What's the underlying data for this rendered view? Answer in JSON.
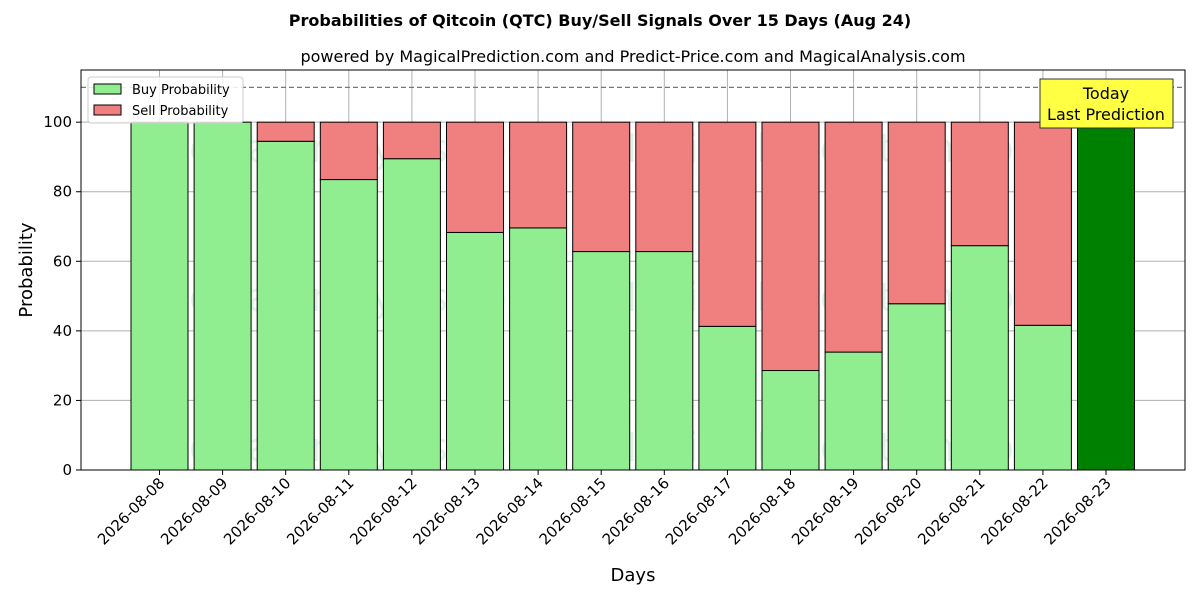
{
  "chart_data": {
    "type": "bar",
    "title": "Probabilities of Qitcoin (QTC) Buy/Sell Signals Over 15 Days (Aug 24)",
    "subtitle": "powered by MagicalPrediction.com and Predict-Price.com and MagicalAnalysis.com",
    "xlabel": "Days",
    "ylabel": "Probability",
    "ylim": [
      0,
      115
    ],
    "yticks": [
      0,
      20,
      40,
      60,
      80,
      100
    ],
    "grid": true,
    "stacked": true,
    "legend_position": "top-left",
    "reference_line": 110,
    "categories": [
      "2026-08-08",
      "2026-08-09",
      "2026-08-10",
      "2026-08-11",
      "2026-08-12",
      "2026-08-13",
      "2026-08-14",
      "2026-08-15",
      "2026-08-16",
      "2026-08-17",
      "2026-08-18",
      "2026-08-19",
      "2026-08-20",
      "2026-08-21",
      "2026-08-22",
      "2026-08-23"
    ],
    "series": [
      {
        "name": "Buy Probability",
        "color": "#90ee90",
        "values": [
          100,
          100,
          94.5,
          83.5,
          89.5,
          68.3,
          69.6,
          62.8,
          62.8,
          41.3,
          28.6,
          33.9,
          47.8,
          64.5,
          41.6,
          100
        ]
      },
      {
        "name": "Sell Probability",
        "color": "#f08080",
        "values": [
          0,
          0,
          5.5,
          16.5,
          10.5,
          31.7,
          30.4,
          37.2,
          37.2,
          58.7,
          71.4,
          66.1,
          52.2,
          35.5,
          58.4,
          0
        ]
      }
    ],
    "highlight": {
      "category": "2026-08-23",
      "color": "#008000"
    },
    "annotation": {
      "lines": [
        "Today",
        "Last Prediction"
      ],
      "color": "#ffff44",
      "position": "top-right"
    },
    "watermarks": [
      "MagicalAnalysis.com",
      "MagicalPrediction.com"
    ]
  }
}
